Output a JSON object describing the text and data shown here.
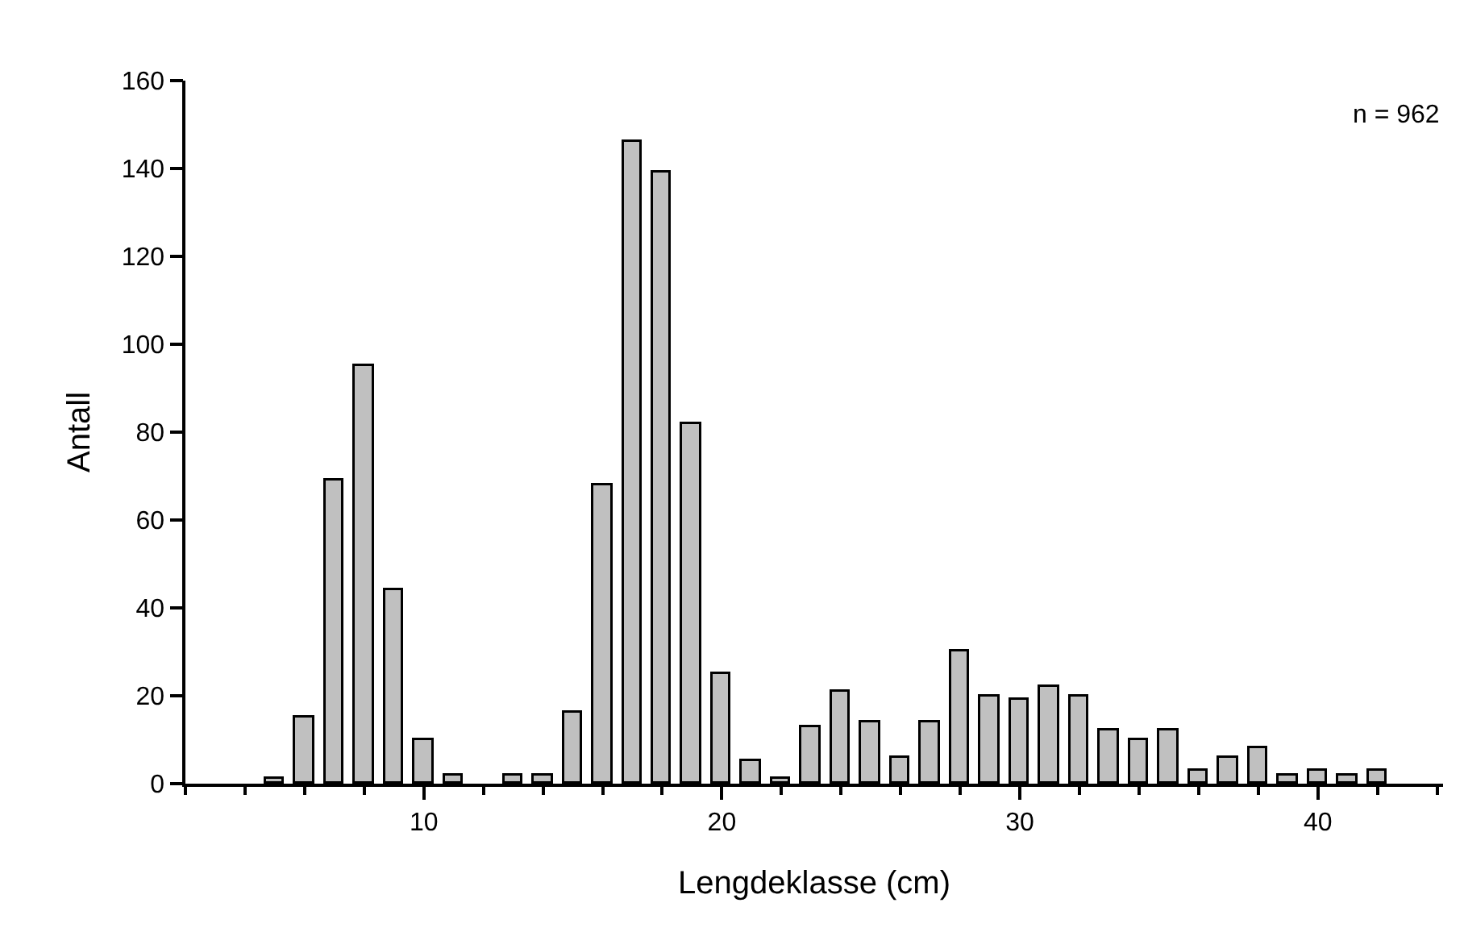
{
  "chart_data": {
    "type": "bar",
    "xlabel": "Lengdeklasse (cm)",
    "ylabel": "Antall",
    "annotations": [
      "n = 962"
    ],
    "x": [
      5,
      6,
      7,
      8,
      9,
      10,
      11,
      12,
      13,
      14,
      15,
      16,
      17,
      18,
      19,
      20,
      21,
      22,
      23,
      24,
      25,
      26,
      27,
      28,
      29,
      30,
      31,
      32,
      33,
      34,
      35,
      36,
      37,
      38,
      39,
      40,
      41,
      42
    ],
    "values": [
      1,
      15,
      69,
      95,
      44,
      10,
      2,
      null,
      2,
      2,
      16,
      68,
      146,
      139,
      82,
      25,
      5,
      1,
      13,
      21,
      14,
      6,
      14,
      30,
      20,
      19,
      22,
      20,
      12,
      10,
      12,
      3,
      6,
      8,
      2,
      3,
      2,
      3
    ],
    "color": "#c0c0c0",
    "xlim": [
      2,
      44.2
    ],
    "xticks": [
      {
        "value": 2,
        "label": null
      },
      {
        "value": 4,
        "label": null
      },
      {
        "value": 6,
        "label": null
      },
      {
        "value": 8,
        "label": null
      },
      10,
      {
        "value": 12,
        "label": null
      },
      {
        "value": 14,
        "label": null
      },
      {
        "value": 16,
        "label": null
      },
      {
        "value": 18,
        "label": null
      },
      20,
      {
        "value": 22,
        "label": null
      },
      {
        "value": 24,
        "label": null
      },
      {
        "value": 26,
        "label": null
      },
      {
        "value": 28,
        "label": null
      },
      30,
      {
        "value": 32,
        "label": null
      },
      {
        "value": 34,
        "label": null
      },
      {
        "value": 36,
        "label": null
      },
      {
        "value": 38,
        "label": null
      },
      40,
      {
        "value": 42,
        "label": null
      },
      {
        "value": 44,
        "label": null
      }
    ],
    "ylim": [
      0,
      160
    ],
    "yticks": [
      0,
      20,
      40,
      60,
      80,
      100,
      120,
      140,
      160
    ]
  }
}
